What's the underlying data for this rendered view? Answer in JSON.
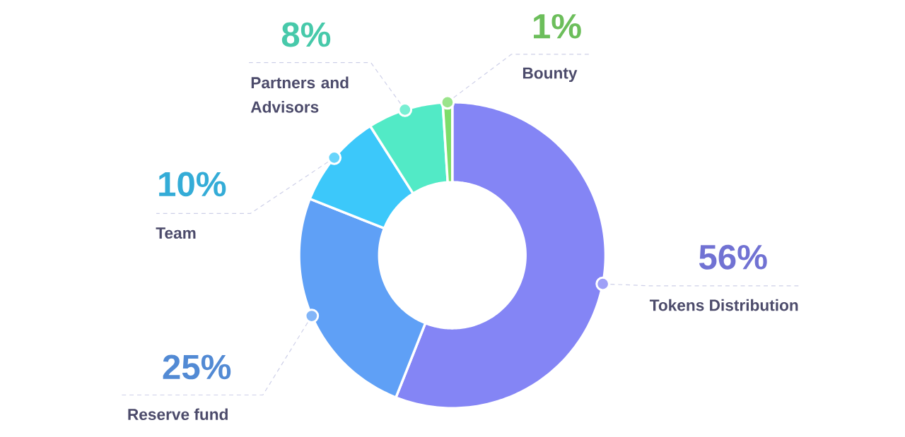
{
  "chart_data": {
    "type": "donut",
    "categories": [
      "Tokens Distribution",
      "Reserve fund",
      "Team",
      "Partners and Advisors",
      "Bounty"
    ],
    "values": [
      56,
      25,
      10,
      8,
      1
    ],
    "colors": [
      "#8485f5",
      "#5fa0f6",
      "#3cc8fa",
      "#52eac6",
      "#7ddd6a"
    ],
    "value_labels": [
      "56%",
      "25%",
      "10%",
      "8%",
      "1%"
    ]
  }
}
